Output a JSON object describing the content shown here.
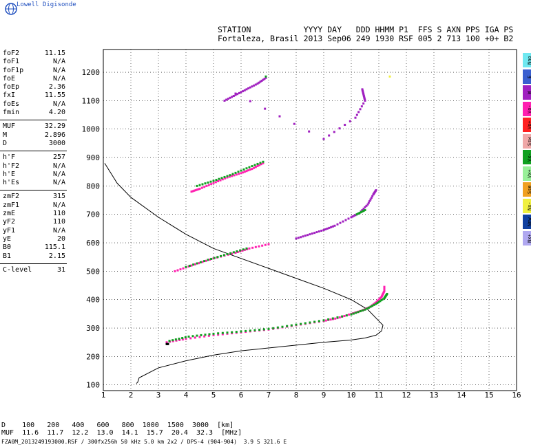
{
  "app": {
    "logo_text": "Lowell Digisonde"
  },
  "header": {
    "line1": "STATION           YYYY DAY   DDD HHMM P1  FFS S AXN PPS IGA PS",
    "line2": "Fortaleza, Brasil 2013 Sep06 249 1930 RSF 005 2 713 100 +0+ B2"
  },
  "params": [
    {
      "label": "foF2",
      "value": "11.15"
    },
    {
      "label": "foF1",
      "value": "N/A"
    },
    {
      "label": "foF1p",
      "value": "N/A"
    },
    {
      "label": "foE",
      "value": "N/A"
    },
    {
      "label": "foEp",
      "value": "2.36"
    },
    {
      "label": "fxI",
      "value": "11.55"
    },
    {
      "label": "foEs",
      "value": "N/A"
    },
    {
      "label": "fmin",
      "value": "4.20"
    },
    {
      "gap": true
    },
    {
      "label": "MUF",
      "value": "32.29"
    },
    {
      "label": "M",
      "value": "2.896"
    },
    {
      "label": "D",
      "value": "3000"
    },
    {
      "gap": true
    },
    {
      "label": "h'F",
      "value": "257"
    },
    {
      "label": "h'F2",
      "value": "N/A"
    },
    {
      "label": "h'E",
      "value": "N/A"
    },
    {
      "label": "h'Es",
      "value": "N/A"
    },
    {
      "gap": true
    },
    {
      "label": "zmF2",
      "value": "315"
    },
    {
      "label": "zmF1",
      "value": "N/A"
    },
    {
      "label": "zmE",
      "value": "110"
    },
    {
      "label": "yF2",
      "value": "110"
    },
    {
      "label": "yF1",
      "value": "N/A"
    },
    {
      "label": "yE",
      "value": "20"
    },
    {
      "label": "B0",
      "value": "115.1"
    },
    {
      "label": "B1",
      "value": "2.15"
    },
    {
      "gap": true
    },
    {
      "label": "C-level",
      "value": "31"
    }
  ],
  "legend": [
    {
      "label": "Nno",
      "color": "#6fe8f0"
    },
    {
      "label": "E",
      "color": "#3a5fd0"
    },
    {
      "label": "W",
      "color": "#a020c0"
    },
    {
      "label": "Vo-",
      "color": "#ff20b0"
    },
    {
      "label": "Vo+",
      "color": "#ff2020"
    },
    {
      "label": "Ssw",
      "color": "#f0a8a8"
    },
    {
      "label": "Vx-",
      "color": "#10a020"
    },
    {
      "label": "Vx+",
      "color": "#98f098"
    },
    {
      "label": "Sse",
      "color": "#f0a020"
    },
    {
      "label": "Nx-",
      "color": "#f0f040"
    },
    {
      "label": "Nnw",
      "color": "#1040a0"
    },
    {
      "label": "Nx+",
      "color": "#b0a8f0"
    }
  ],
  "bottom": {
    "line1": "D    100   200   400   600   800  1000  1500  3000  [km]",
    "line2": "MUF  11.6  11.7  12.2  13.0  14.1  15.7  20.4  32.3  [MHz]",
    "footer": "FZA0M_2013249193000.RSF / 300fx256h 50 kHz 5.0 km 2x2 / DPS-4 (904-904)  3.9 S 321.6 E"
  },
  "chart_data": {
    "type": "scatter",
    "title": "",
    "xlabel": "",
    "ylabel": "",
    "xlim": [
      1,
      16
    ],
    "ylim": [
      80,
      1280
    ],
    "x_ticks": [
      1,
      2,
      3,
      4,
      5,
      6,
      7,
      8,
      9,
      10,
      11,
      12,
      13,
      14,
      15,
      16
    ],
    "y_ticks": [
      100,
      200,
      300,
      400,
      500,
      600,
      700,
      800,
      900,
      1000,
      1100,
      1200
    ],
    "grid": true,
    "profile_curve": {
      "name": "",
      "points": [
        [
          1.05,
          880
        ],
        [
          1.5,
          810
        ],
        [
          2,
          760
        ],
        [
          3,
          690
        ],
        [
          4,
          630
        ],
        [
          5,
          580
        ],
        [
          6,
          545
        ],
        [
          7,
          510
        ],
        [
          8,
          475
        ],
        [
          9,
          440
        ],
        [
          10,
          400
        ],
        [
          10.6,
          365
        ],
        [
          10.95,
          330
        ],
        [
          11.15,
          310
        ],
        [
          11.1,
          290
        ],
        [
          10.9,
          275
        ],
        [
          10.5,
          265
        ],
        [
          10,
          258
        ],
        [
          9,
          250
        ],
        [
          8,
          240
        ],
        [
          7,
          230
        ],
        [
          6,
          220
        ],
        [
          5,
          205
        ],
        [
          4,
          185
        ],
        [
          3,
          160
        ],
        [
          2.3,
          125
        ],
        [
          2.25,
          110
        ],
        [
          2.2,
          105
        ]
      ]
    },
    "traces": [
      {
        "name": "",
        "color": "#ff20b0",
        "points": [
          [
            3.3,
            250
          ],
          [
            4,
            262
          ],
          [
            5,
            275
          ],
          [
            6,
            285
          ],
          [
            7,
            295
          ],
          [
            8,
            310
          ],
          [
            9,
            325
          ],
          [
            9.5,
            335
          ],
          [
            10,
            350
          ],
          [
            10.4,
            362
          ],
          [
            10.7,
            375
          ],
          [
            10.9,
            390
          ],
          [
            11.1,
            410
          ],
          [
            11.2,
            430
          ],
          [
            11.2,
            445
          ]
        ]
      },
      {
        "name": "",
        "color": "#10a020",
        "points": [
          [
            3.4,
            255
          ],
          [
            4.1,
            270
          ],
          [
            5,
            280
          ],
          [
            6,
            288
          ],
          [
            7,
            297
          ],
          [
            8,
            312
          ],
          [
            9,
            327
          ],
          [
            10,
            348
          ],
          [
            10.5,
            365
          ],
          [
            10.9,
            385
          ],
          [
            11.2,
            405
          ],
          [
            11.3,
            420
          ]
        ]
      },
      {
        "name": "",
        "color": "#ff20b0",
        "points": [
          [
            3.6,
            500
          ],
          [
            4.2,
            520
          ],
          [
            5,
            545
          ],
          [
            5.8,
            565
          ],
          [
            6.3,
            580
          ],
          [
            7,
            595
          ]
        ]
      },
      {
        "name": "",
        "color": "#10a020",
        "points": [
          [
            4,
            515
          ],
          [
            4.8,
            540
          ],
          [
            5.5,
            560
          ],
          [
            6.2,
            580
          ]
        ]
      },
      {
        "name": "",
        "color": "#a020c0",
        "points": [
          [
            8,
            615
          ],
          [
            8.5,
            630
          ],
          [
            9,
            645
          ],
          [
            9.4,
            660
          ],
          [
            10,
            690
          ],
          [
            10.3,
            705
          ],
          [
            10.6,
            735
          ],
          [
            10.8,
            770
          ],
          [
            10.9,
            785
          ]
        ]
      },
      {
        "name": "",
        "color": "#10a020",
        "points": [
          [
            10.2,
            700
          ],
          [
            10.5,
            715
          ]
        ]
      },
      {
        "name": "",
        "color": "#ff20b0",
        "points": [
          [
            4.2,
            780
          ],
          [
            4.5,
            790
          ],
          [
            5,
            810
          ],
          [
            5.5,
            830
          ],
          [
            6,
            845
          ],
          [
            6.4,
            860
          ],
          [
            6.8,
            880
          ]
        ]
      },
      {
        "name": "",
        "color": "#10a020",
        "points": [
          [
            4.4,
            800
          ],
          [
            5,
            818
          ],
          [
            5.6,
            838
          ],
          [
            6.2,
            862
          ],
          [
            6.8,
            885
          ]
        ]
      },
      {
        "name": "",
        "color": "#a020c0",
        "points": [
          [
            5.4,
            1100
          ],
          [
            5.8,
            1120
          ],
          [
            6.2,
            1140
          ],
          [
            6.6,
            1160
          ],
          [
            6.9,
            1180
          ]
        ]
      },
      {
        "name": "",
        "color": "#10a020",
        "points": [
          [
            6.9,
            1185
          ]
        ]
      },
      {
        "name": "",
        "color": "#a020c0",
        "points": [
          [
            10.4,
            1140
          ],
          [
            10.45,
            1120
          ],
          [
            10.5,
            1100
          ],
          [
            10.15,
            1040
          ],
          [
            9,
            965
          ],
          [
            5.8,
            1125
          ]
        ]
      },
      {
        "name": "",
        "color": "#f0f040",
        "points": [
          [
            11.4,
            1185
          ]
        ]
      },
      {
        "name": "",
        "color": "#000000",
        "points": [
          [
            3.3,
            244
          ],
          [
            3.35,
            244
          ]
        ]
      }
    ]
  }
}
